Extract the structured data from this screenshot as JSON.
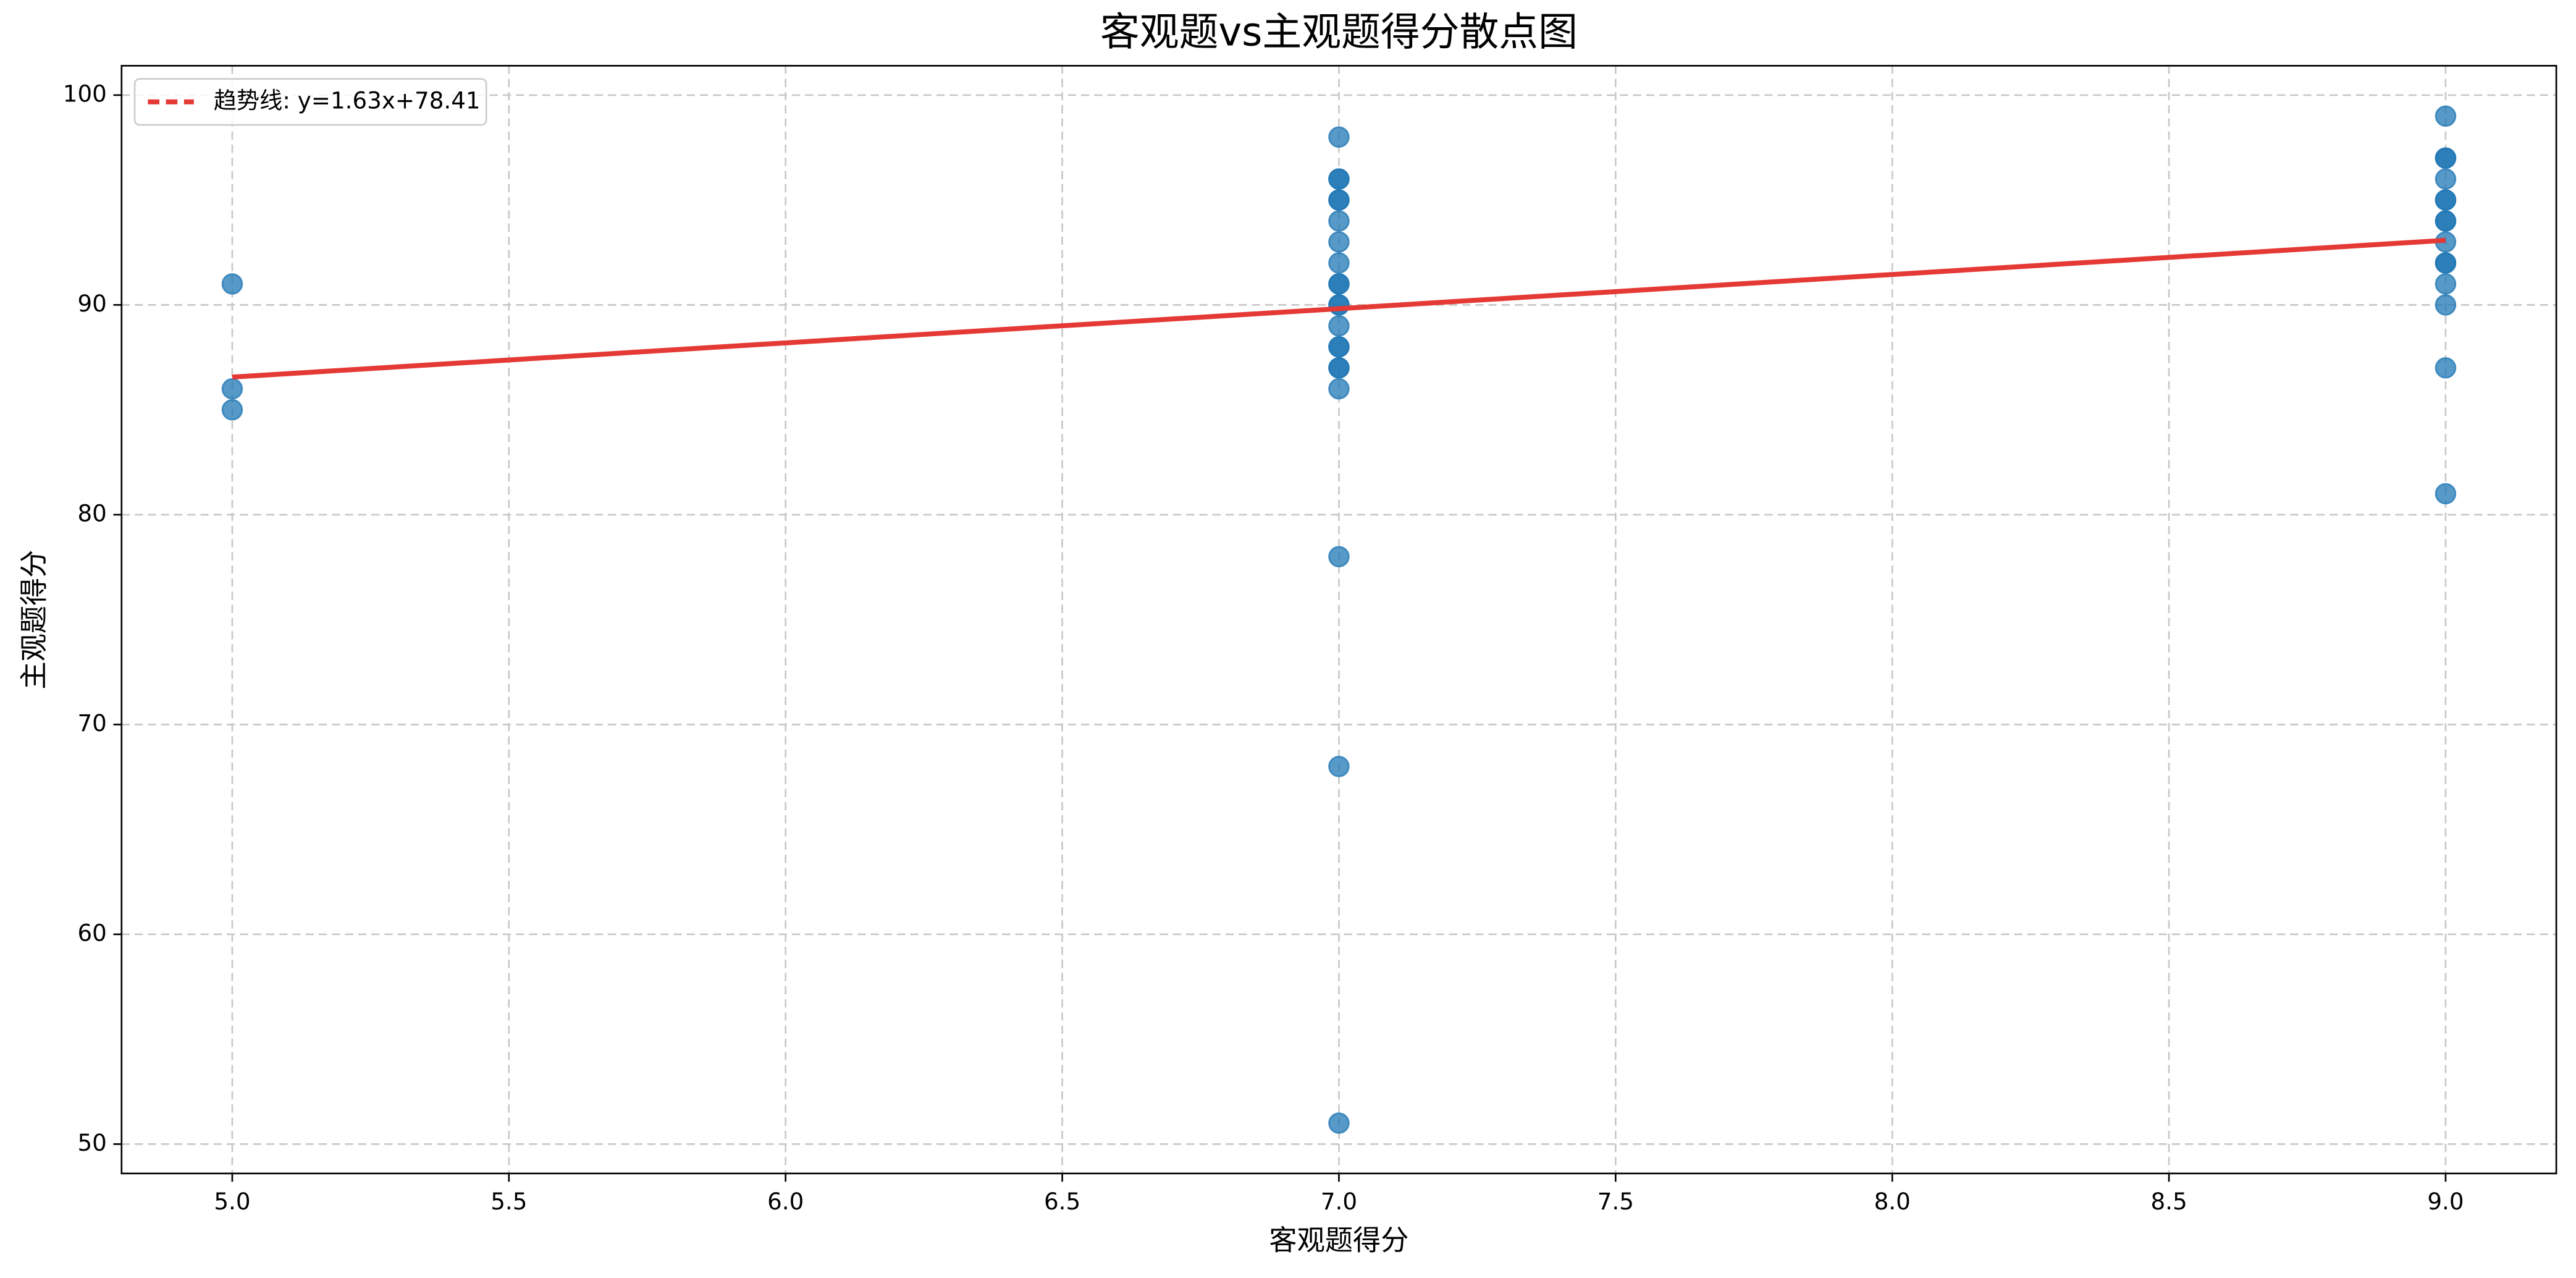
{
  "chart_data": {
    "type": "scatter",
    "title": "客观题vs主观题得分散点图",
    "x_label": "客观题得分",
    "y_label": "主观题得分",
    "xlim": [
      4.8,
      9.2
    ],
    "ylim": [
      48.6,
      101.4
    ],
    "xticks": [
      {
        "value": 5,
        "label": "5.0"
      },
      {
        "value": 5.5,
        "label": "5.5"
      },
      {
        "value": 6,
        "label": "6.0"
      },
      {
        "value": 6.5,
        "label": "6.5"
      },
      {
        "value": 7,
        "label": "7.0"
      },
      {
        "value": 7.5,
        "label": "7.5"
      },
      {
        "value": 8,
        "label": "8.0"
      },
      {
        "value": 8.5,
        "label": "8.5"
      },
      {
        "value": 9,
        "label": "9.0"
      }
    ],
    "yticks": [
      50,
      60,
      70,
      80,
      90,
      100
    ],
    "grid": true,
    "legend": "upper left",
    "series": [
      {
        "type": "scatter",
        "color": "#1f77b4",
        "x": [
          5,
          5,
          5,
          7,
          7,
          7,
          7,
          7,
          7,
          7,
          7,
          7,
          7,
          7,
          7,
          7,
          7,
          7,
          7,
          7,
          7,
          7,
          7,
          7,
          9,
          9,
          9,
          9,
          9,
          9,
          9,
          9,
          9,
          9,
          9,
          9,
          9,
          9,
          9
        ],
        "values": [
          91,
          86,
          85,
          98,
          96,
          96,
          95,
          95,
          94,
          93,
          92,
          91,
          91,
          90,
          90,
          89,
          88,
          88,
          87,
          87,
          86,
          78,
          68,
          51,
          99,
          97,
          97,
          96,
          95,
          95,
          94,
          94,
          93,
          92,
          92,
          91,
          90,
          87,
          81
        ]
      },
      {
        "type": "line",
        "name": "趋势线: y=1.63x+78.41",
        "color": "#e53935",
        "x": [
          5,
          9
        ],
        "values": [
          86.56,
          93.08
        ]
      }
    ]
  }
}
